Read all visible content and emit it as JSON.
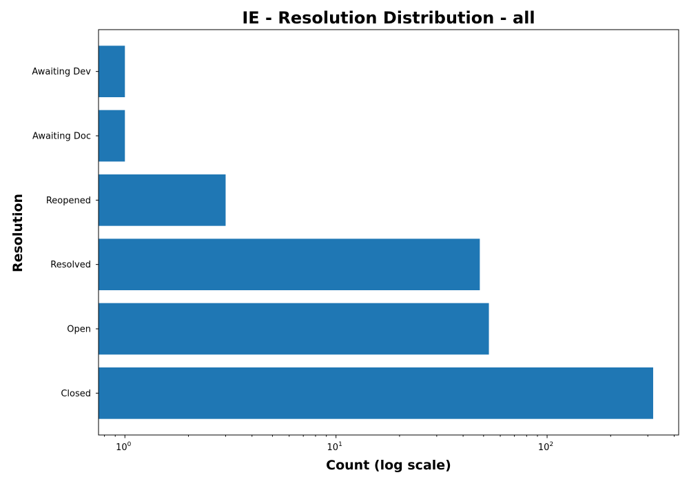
{
  "chart_data": {
    "type": "bar",
    "orientation": "horizontal",
    "title": "IE - Resolution Distribution - all",
    "xlabel": "Count (log scale)",
    "ylabel": "Resolution",
    "x_scale": "log",
    "xlim": [
      0.75,
      420
    ],
    "x_ticks": [
      {
        "base": "10",
        "exp": "0",
        "value": 1
      },
      {
        "base": "10",
        "exp": "1",
        "value": 10
      },
      {
        "base": "10",
        "exp": "2",
        "value": 100
      }
    ],
    "categories": [
      "Closed",
      "Open",
      "Resolved",
      "Reopened",
      "Awaiting Doc",
      "Awaiting Dev"
    ],
    "values": [
      318,
      53,
      48,
      3,
      1,
      1
    ],
    "colors": {
      "bar": "#1f77b4"
    },
    "grid": false,
    "legend": "none"
  }
}
